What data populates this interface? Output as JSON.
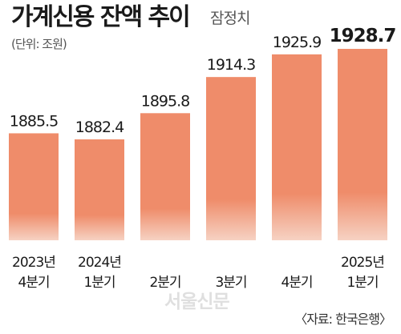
{
  "chart_data": {
    "type": "bar",
    "title": "가계신용 잔액 추이",
    "subtitle": "잠정치",
    "unit": "(단위: 조원)",
    "categories": [
      [
        "2023년",
        "4분기"
      ],
      [
        "2024년",
        "1분기"
      ],
      [
        "",
        "2분기"
      ],
      [
        "",
        "3분기"
      ],
      [
        "",
        "4분기"
      ],
      [
        "2025년",
        "1분기"
      ]
    ],
    "values": [
      1885.5,
      1882.4,
      1895.8,
      1914.3,
      1925.9,
      1928.7
    ],
    "value_labels": [
      "1885.5",
      "1882.4",
      "1895.8",
      "1914.3",
      "1925.9",
      "1928.7"
    ],
    "highlight_last": true,
    "source": "〈자료: 한국은행〉",
    "watermark": "서울신문",
    "bar_color_top": "#ef8c6a",
    "bar_color_bottom": "#f6d2c3"
  }
}
